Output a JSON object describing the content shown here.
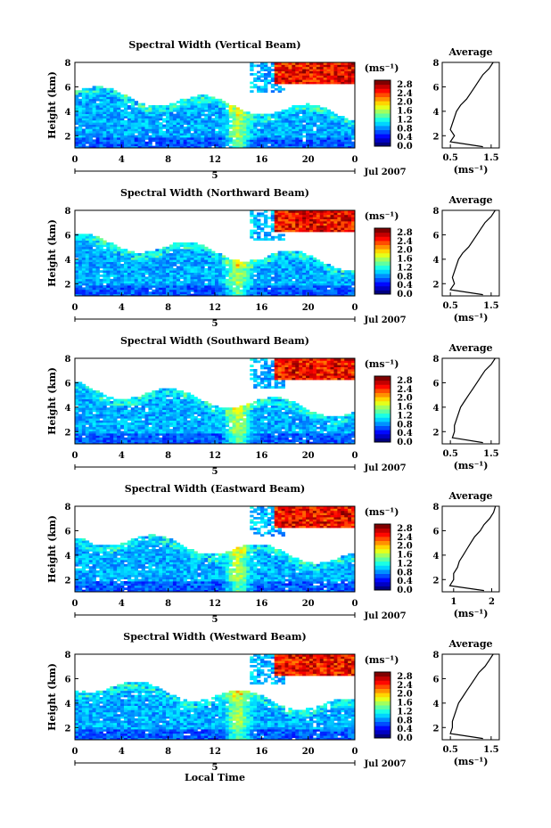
{
  "chart_data": [
    {
      "type": "heatmap",
      "title": "Spectral Width (Vertical Beam)",
      "ylabel": "Height (km)",
      "xlim": [
        0,
        24
      ],
      "ylim": [
        1,
        8
      ],
      "x_ticks": [
        "0",
        "4",
        "8",
        "12",
        "16",
        "20",
        "0"
      ],
      "y_ticks": [
        "2",
        "4",
        "6",
        "8"
      ],
      "date_label": "Jul 2007",
      "day_label": "5",
      "colorbar": {
        "unit": "(ms⁻¹)",
        "ticks": [
          "0.0",
          "0.4",
          "0.8",
          "1.2",
          "1.6",
          "2.0",
          "2.4",
          "2.8"
        ],
        "range": [
          0,
          3
        ]
      },
      "average": {
        "title": "Average",
        "xlabel": "(ms⁻¹)",
        "xticks": [
          "0.5",
          "1.5"
        ],
        "xlim": [
          0.3,
          1.7
        ],
        "profile": [
          [
            1.1,
            1.3
          ],
          [
            1.5,
            0.5
          ],
          [
            2.0,
            0.6
          ],
          [
            2.5,
            0.5
          ],
          [
            3.0,
            0.55
          ],
          [
            3.5,
            0.6
          ],
          [
            4.0,
            0.65
          ],
          [
            4.5,
            0.75
          ],
          [
            5.0,
            0.9
          ],
          [
            5.5,
            1.0
          ],
          [
            6.0,
            1.1
          ],
          [
            6.5,
            1.2
          ],
          [
            7.0,
            1.3
          ],
          [
            7.5,
            1.45
          ],
          [
            8.0,
            1.55
          ]
        ]
      }
    },
    {
      "type": "heatmap",
      "title": "Spectral Width (Northward Beam)",
      "ylabel": "Height (km)",
      "xlim": [
        0,
        24
      ],
      "ylim": [
        1,
        8
      ],
      "x_ticks": [
        "0",
        "4",
        "8",
        "12",
        "16",
        "20",
        "0"
      ],
      "y_ticks": [
        "2",
        "4",
        "6",
        "8"
      ],
      "date_label": "Jul 2007",
      "day_label": "5",
      "colorbar": {
        "unit": "(ms⁻¹)",
        "ticks": [
          "0.0",
          "0.4",
          "0.8",
          "1.2",
          "1.6",
          "2.0",
          "2.4",
          "2.8"
        ],
        "range": [
          0,
          3
        ]
      },
      "average": {
        "title": "Average",
        "xlabel": "(ms⁻¹)",
        "xticks": [
          "0.5",
          "1.5"
        ],
        "xlim": [
          0.3,
          1.7
        ],
        "profile": [
          [
            1.1,
            1.3
          ],
          [
            1.5,
            0.5
          ],
          [
            2.0,
            0.6
          ],
          [
            2.5,
            0.55
          ],
          [
            3.0,
            0.6
          ],
          [
            3.5,
            0.65
          ],
          [
            4.0,
            0.7
          ],
          [
            4.5,
            0.8
          ],
          [
            5.0,
            0.95
          ],
          [
            5.5,
            1.05
          ],
          [
            6.0,
            1.15
          ],
          [
            6.5,
            1.25
          ],
          [
            7.0,
            1.35
          ],
          [
            7.5,
            1.5
          ],
          [
            8.0,
            1.6
          ]
        ]
      }
    },
    {
      "type": "heatmap",
      "title": "Spectral Width (Southward Beam)",
      "ylabel": "Height (km)",
      "xlim": [
        0,
        24
      ],
      "ylim": [
        1,
        8
      ],
      "x_ticks": [
        "0",
        "4",
        "8",
        "12",
        "16",
        "20",
        "0"
      ],
      "y_ticks": [
        "2",
        "4",
        "6",
        "8"
      ],
      "date_label": "Jul 2007",
      "day_label": "5",
      "colorbar": {
        "unit": "(ms⁻¹)",
        "ticks": [
          "0.0",
          "0.4",
          "0.8",
          "1.2",
          "1.6",
          "2.0",
          "2.4",
          "2.8"
        ],
        "range": [
          0,
          3
        ]
      },
      "average": {
        "title": "Average",
        "xlabel": "(ms⁻¹)",
        "xticks": [
          "0.5",
          "1.5"
        ],
        "xlim": [
          0.3,
          1.7
        ],
        "profile": [
          [
            1.1,
            1.3
          ],
          [
            1.5,
            0.55
          ],
          [
            2.0,
            0.6
          ],
          [
            2.5,
            0.6
          ],
          [
            3.0,
            0.65
          ],
          [
            3.5,
            0.7
          ],
          [
            4.0,
            0.75
          ],
          [
            4.5,
            0.85
          ],
          [
            5.0,
            0.95
          ],
          [
            5.5,
            1.05
          ],
          [
            6.0,
            1.15
          ],
          [
            6.5,
            1.25
          ],
          [
            7.0,
            1.35
          ],
          [
            7.5,
            1.5
          ],
          [
            8.0,
            1.6
          ]
        ]
      }
    },
    {
      "type": "heatmap",
      "title": "Spectral Width (Eastward Beam)",
      "ylabel": "Height (km)",
      "xlim": [
        0,
        24
      ],
      "ylim": [
        1,
        8
      ],
      "x_ticks": [
        "0",
        "4",
        "8",
        "12",
        "16",
        "20",
        "0"
      ],
      "y_ticks": [
        "2",
        "4",
        "6",
        "8"
      ],
      "date_label": "Jul 2007",
      "day_label": "5",
      "colorbar": {
        "unit": "(ms⁻¹)",
        "ticks": [
          "0.0",
          "0.4",
          "0.8",
          "1.2",
          "1.6",
          "2.0",
          "2.4",
          "2.8"
        ],
        "range": [
          0,
          3
        ]
      },
      "average": {
        "title": "Average",
        "xlabel": "(ms⁻¹)",
        "xticks": [
          "1",
          "2"
        ],
        "xlim": [
          0.7,
          2.2
        ],
        "profile": [
          [
            1.1,
            1.8
          ],
          [
            1.5,
            0.9
          ],
          [
            2.0,
            1.0
          ],
          [
            2.5,
            1.0
          ],
          [
            3.0,
            1.1
          ],
          [
            3.5,
            1.15
          ],
          [
            4.0,
            1.25
          ],
          [
            4.5,
            1.35
          ],
          [
            5.0,
            1.45
          ],
          [
            5.5,
            1.55
          ],
          [
            6.0,
            1.7
          ],
          [
            6.5,
            1.8
          ],
          [
            7.0,
            1.95
          ],
          [
            7.5,
            2.05
          ],
          [
            8.0,
            2.1
          ]
        ]
      }
    },
    {
      "type": "heatmap",
      "title": "Spectral Width (Westward Beam)",
      "ylabel": "Height (km)",
      "xlabel": "Local Time",
      "xlim": [
        0,
        24
      ],
      "ylim": [
        1,
        8
      ],
      "x_ticks": [
        "0",
        "4",
        "8",
        "12",
        "16",
        "20",
        "0"
      ],
      "y_ticks": [
        "2",
        "4",
        "6",
        "8"
      ],
      "date_label": "Jul 2007",
      "day_label": "5",
      "colorbar": {
        "unit": "(ms⁻¹)",
        "ticks": [
          "0.0",
          "0.4",
          "0.8",
          "1.2",
          "1.6",
          "2.0",
          "2.4",
          "2.8"
        ],
        "range": [
          0,
          3
        ]
      },
      "average": {
        "title": "Average",
        "xlabel": "(ms⁻¹)",
        "xticks": [
          "0.5",
          "1.5"
        ],
        "xlim": [
          0.3,
          1.7
        ],
        "profile": [
          [
            1.1,
            1.3
          ],
          [
            1.5,
            0.5
          ],
          [
            2.0,
            0.55
          ],
          [
            2.5,
            0.55
          ],
          [
            3.0,
            0.6
          ],
          [
            3.5,
            0.65
          ],
          [
            4.0,
            0.7
          ],
          [
            4.5,
            0.8
          ],
          [
            5.0,
            0.9
          ],
          [
            5.5,
            1.0
          ],
          [
            6.0,
            1.1
          ],
          [
            6.5,
            1.2
          ],
          [
            7.0,
            1.35
          ],
          [
            7.5,
            1.45
          ],
          [
            8.0,
            1.55
          ]
        ]
      }
    }
  ]
}
